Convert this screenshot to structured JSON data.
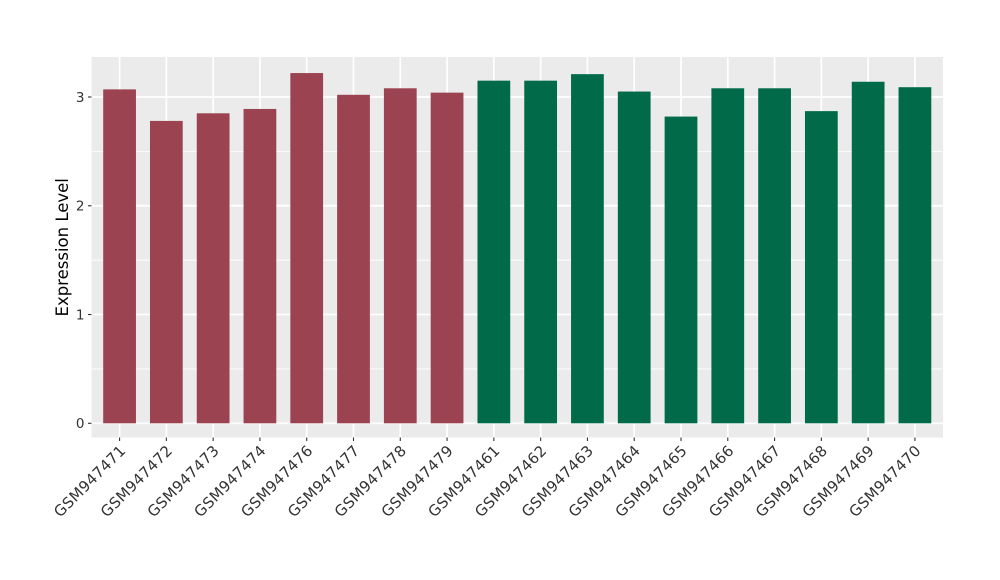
{
  "chart_data": {
    "type": "bar",
    "title": "",
    "xlabel": "",
    "ylabel": "Expression Level",
    "categories": [
      "GSM947471",
      "GSM947472",
      "GSM947473",
      "GSM947474",
      "GSM947476",
      "GSM947477",
      "GSM947478",
      "GSM947479",
      "GSM947461",
      "GSM947462",
      "GSM947463",
      "GSM947464",
      "GSM947465",
      "GSM947466",
      "GSM947467",
      "GSM947468",
      "GSM947469",
      "GSM947470"
    ],
    "values": [
      3.07,
      2.78,
      2.85,
      2.89,
      3.22,
      3.02,
      3.08,
      3.04,
      3.15,
      3.15,
      3.21,
      3.05,
      2.82,
      3.08,
      3.08,
      2.87,
      3.14,
      3.09
    ],
    "bar_group_index": [
      0,
      0,
      0,
      0,
      0,
      0,
      0,
      0,
      1,
      1,
      1,
      1,
      1,
      1,
      1,
      1,
      1,
      1
    ],
    "group_colors": [
      "#9C4351",
      "#016A49"
    ],
    "yticks": [
      0,
      1,
      2,
      3
    ],
    "yticks_minor": [
      0.5,
      1.5,
      2.5
    ],
    "ylim": [
      0,
      3.37
    ],
    "grid": true,
    "legend": "none",
    "x_label_angle_deg": 45,
    "style": {
      "panel_background": "#EBEBEB",
      "gridline_color": "#FFFFFF",
      "axis_text_color": "#333333",
      "axis_title_color": "#000000",
      "tick_mark_color": "#333333",
      "outer_background": "#FFFFFF"
    }
  }
}
